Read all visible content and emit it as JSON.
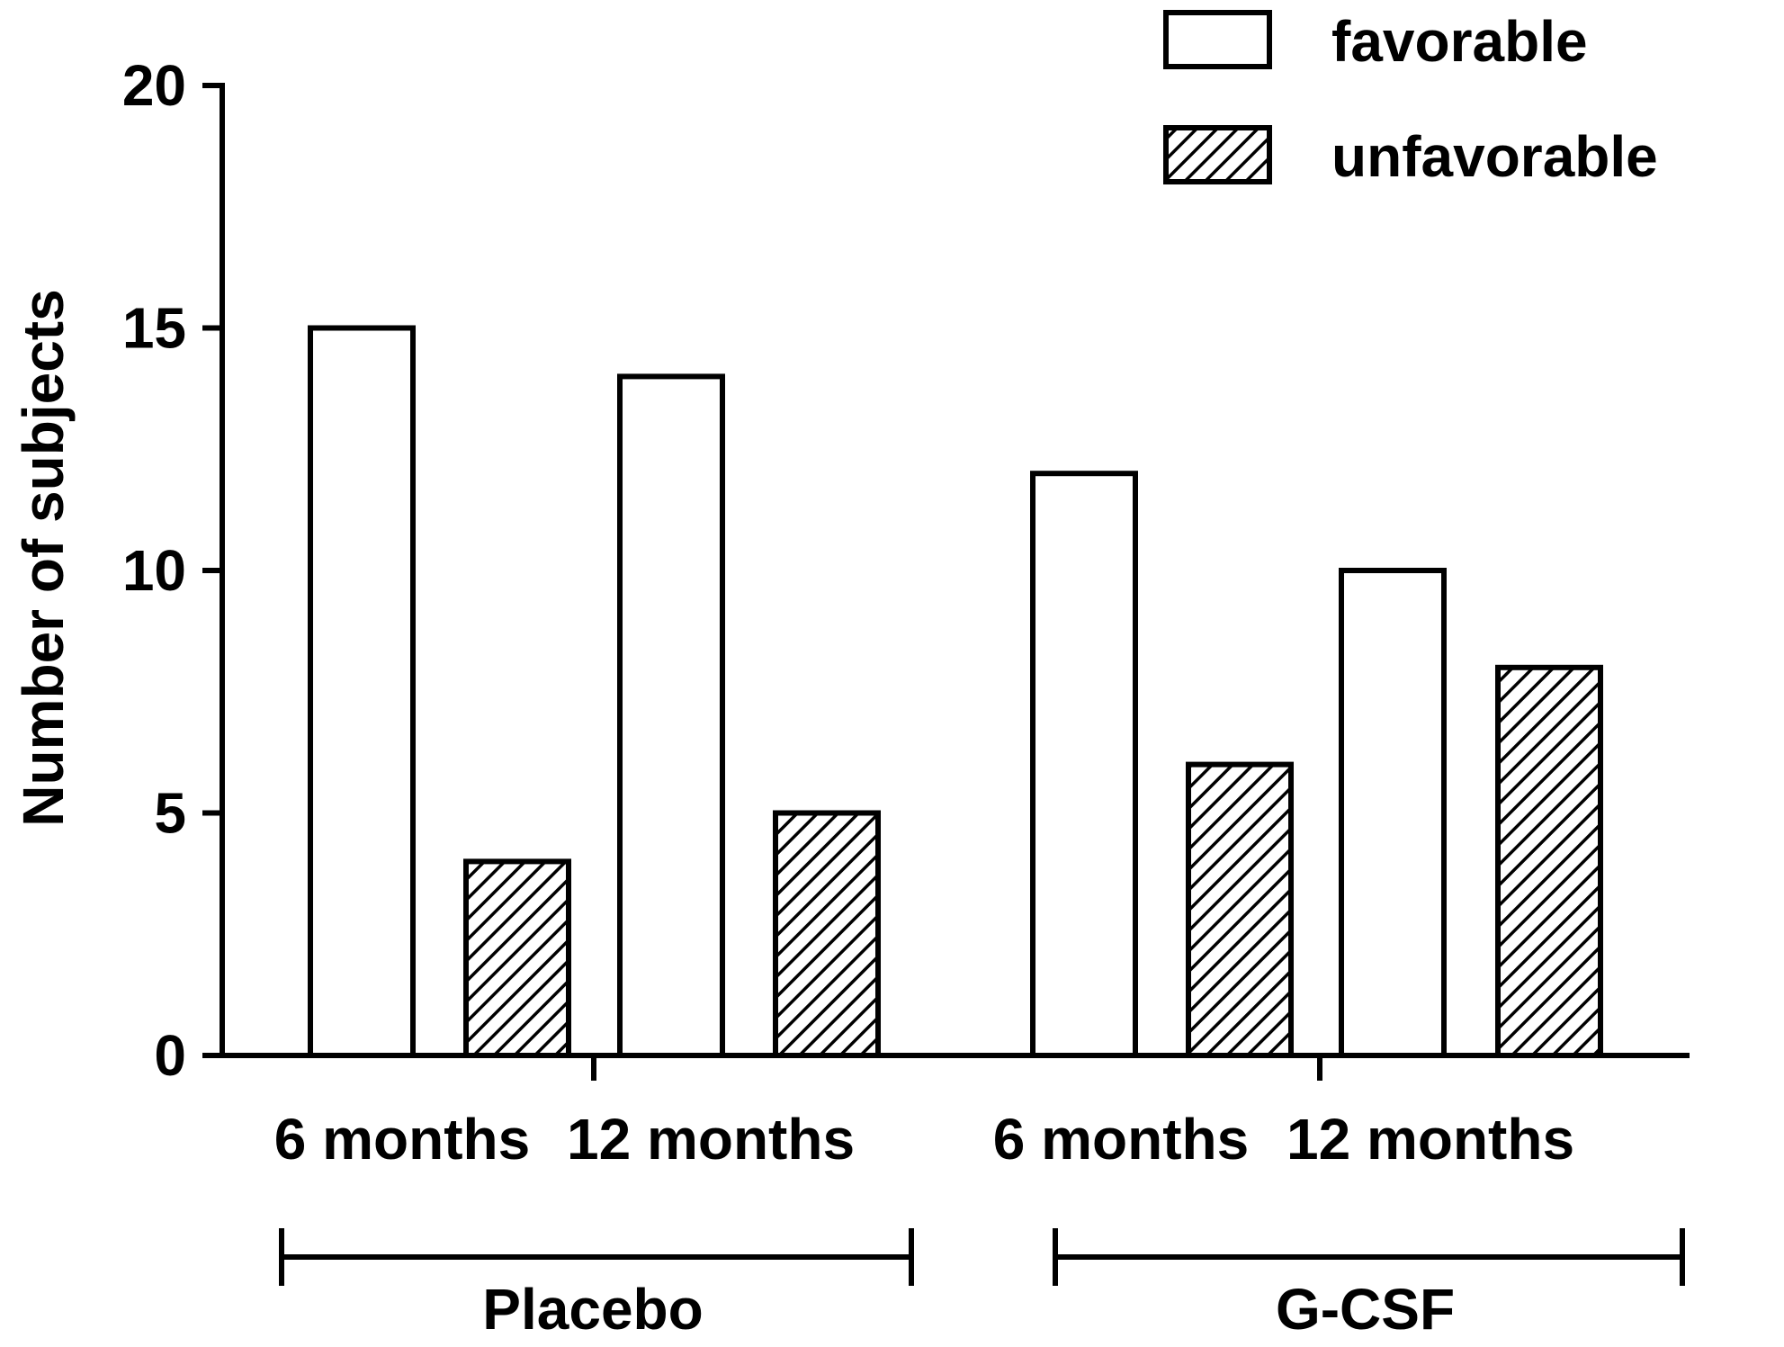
{
  "chart_data": {
    "type": "bar",
    "title": "",
    "xlabel": "",
    "ylabel": "Number of subjects",
    "ylim": [
      0,
      20
    ],
    "yticks": [
      0,
      5,
      10,
      15,
      20
    ],
    "groups": [
      {
        "label": "Placebo",
        "categories": [
          {
            "label": "6 months",
            "favorable": 15,
            "unfavorable": 4
          },
          {
            "label": "12 months",
            "favorable": 14,
            "unfavorable": 5
          }
        ]
      },
      {
        "label": "G-CSF",
        "categories": [
          {
            "label": "6 months",
            "favorable": 12,
            "unfavorable": 6
          },
          {
            "label": "12 months",
            "favorable": 10,
            "unfavorable": 8
          }
        ]
      }
    ],
    "series": [
      {
        "name": "favorable",
        "fill": "white"
      },
      {
        "name": "unfavorable",
        "fill": "hatched"
      }
    ],
    "legend_position": "top-right",
    "grid": false
  }
}
